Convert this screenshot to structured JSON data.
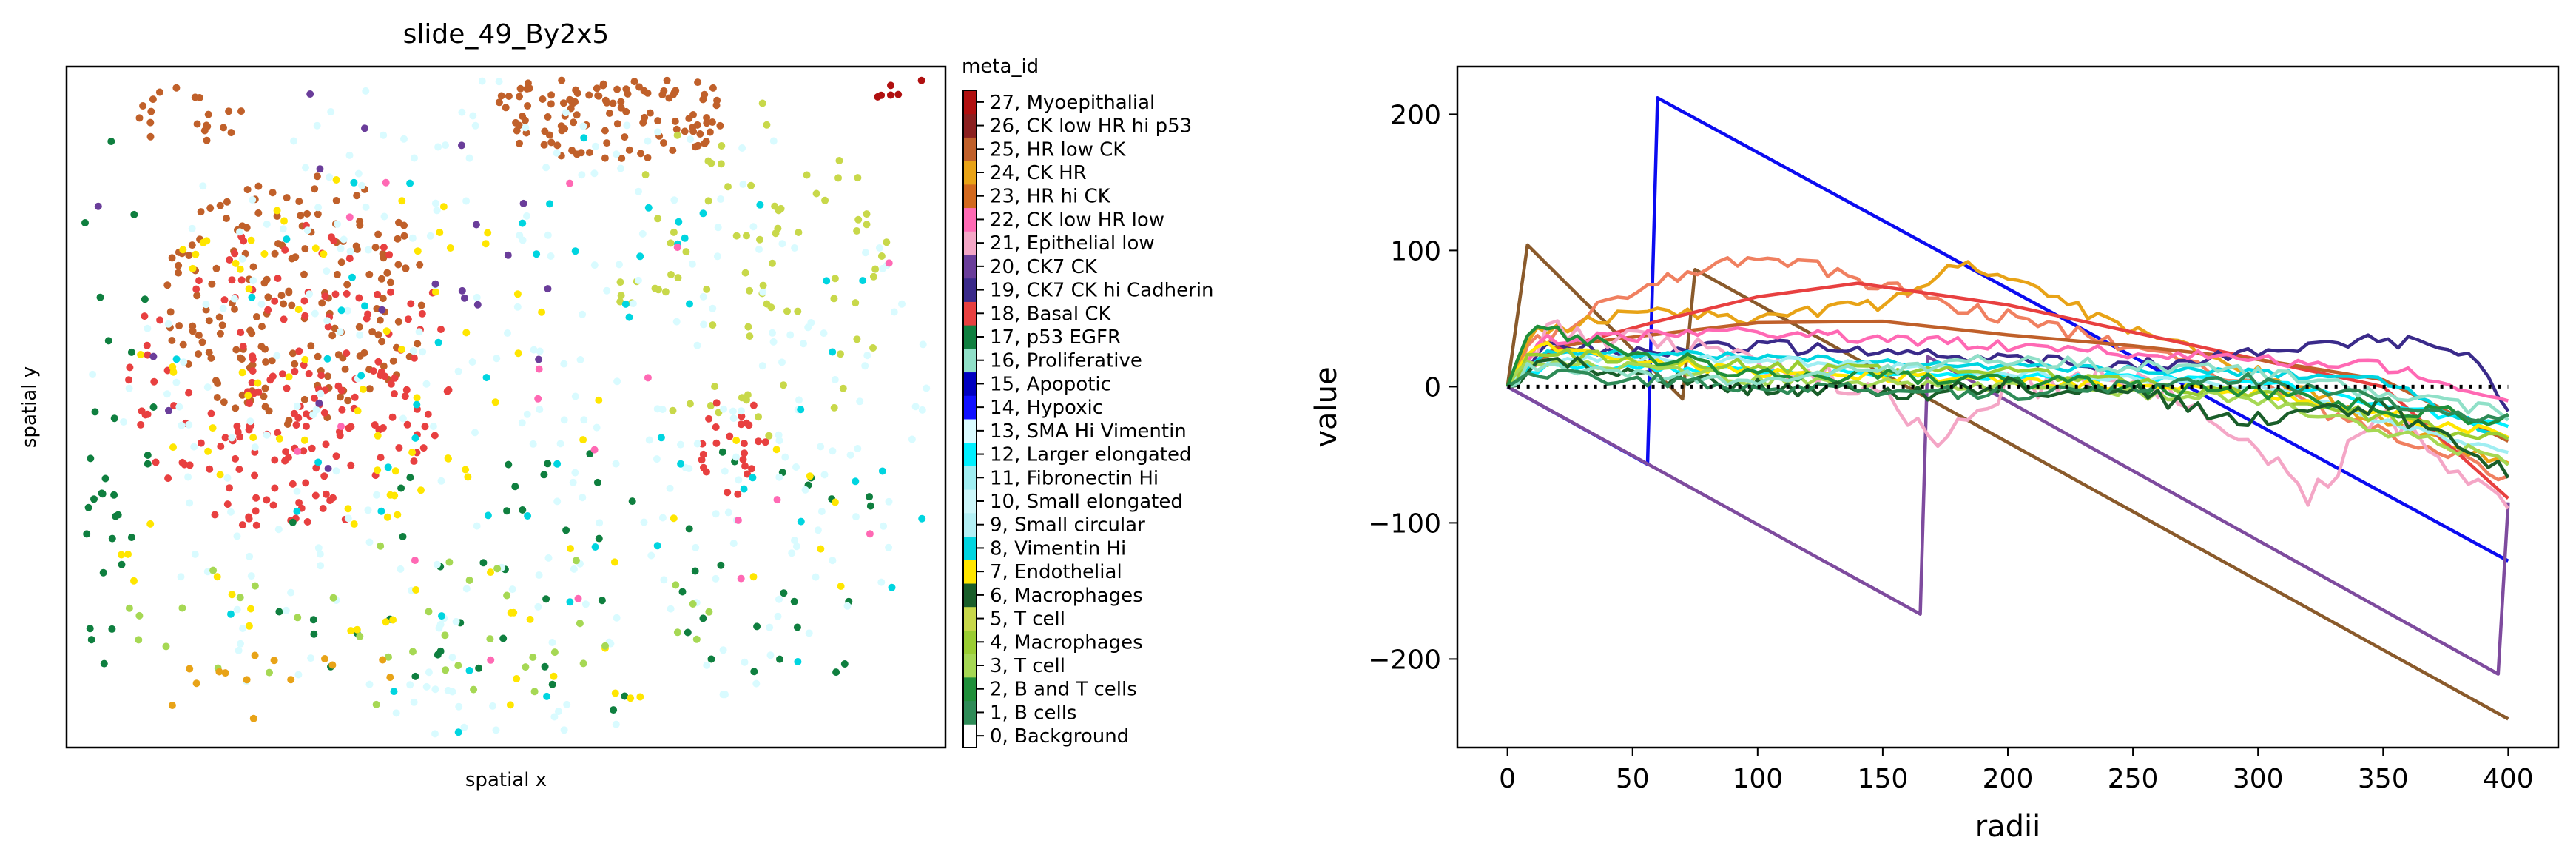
{
  "chart_data": [
    {
      "type": "scatter",
      "title": "slide_49_By2x5",
      "xlabel": "spatial x",
      "ylabel": "spatial y",
      "axis_ticks_visible": false,
      "grid": false,
      "legend_position": "right (colorbar)",
      "colorbar_title": "meta_id",
      "categories": [
        {
          "id": 0,
          "label": "0, Background",
          "color": "#ffffff"
        },
        {
          "id": 1,
          "label": "1, B cells",
          "color": "#2e8b57"
        },
        {
          "id": 2,
          "label": "2, B and T cells",
          "color": "#1f8f3a"
        },
        {
          "id": 3,
          "label": "3, T cell",
          "color": "#a6d854"
        },
        {
          "id": 4,
          "label": "4, Macrophages",
          "color": "#9acd32"
        },
        {
          "id": 5,
          "label": "5, T cell",
          "color": "#c8d84a"
        },
        {
          "id": 6,
          "label": "6, Macrophages",
          "color": "#1a5e2a"
        },
        {
          "id": 7,
          "label": "7, Endothelial",
          "color": "#ffe600"
        },
        {
          "id": 8,
          "label": "8, Vimentin Hi",
          "color": "#00d5e0"
        },
        {
          "id": 9,
          "label": "9, Small circular",
          "color": "#b3f0f5"
        },
        {
          "id": 10,
          "label": "10, Small elongated",
          "color": "#ccf7fa"
        },
        {
          "id": 11,
          "label": "11, Fibronectin Hi",
          "color": "#a0eef2"
        },
        {
          "id": 12,
          "label": "12, Larger elongated",
          "color": "#00f0ff"
        },
        {
          "id": 13,
          "label": "13, SMA Hi Vimentin",
          "color": "#d9fbff"
        },
        {
          "id": 14,
          "label": "14, Hypoxic",
          "color": "#1010ff"
        },
        {
          "id": 15,
          "label": "15, Apopotic",
          "color": "#0000c0"
        },
        {
          "id": 16,
          "label": "16, Proliferative",
          "color": "#90e0c8"
        },
        {
          "id": 17,
          "label": "17, p53 EGFR",
          "color": "#0f7f3f"
        },
        {
          "id": 18,
          "label": "18, Basal CK",
          "color": "#e84040"
        },
        {
          "id": 19,
          "label": "19, CK7 CK hi Cadherin",
          "color": "#3a2a8a"
        },
        {
          "id": 20,
          "label": "20, CK7 CK",
          "color": "#6a3d9a"
        },
        {
          "id": 21,
          "label": "21, Epithelial low",
          "color": "#f4a6c6"
        },
        {
          "id": 22,
          "label": "22, CK low HR low",
          "color": "#ff69b4"
        },
        {
          "id": 23,
          "label": "23, HR hi CK",
          "color": "#d2691e"
        },
        {
          "id": 24,
          "label": "24, CK HR",
          "color": "#e8a317"
        },
        {
          "id": 25,
          "label": "25, HR low CK",
          "color": "#c0602a"
        },
        {
          "id": 26,
          "label": "26, CK low HR hi p53",
          "color": "#8b2020"
        },
        {
          "id": 27,
          "label": "27, Myoepithalial",
          "color": "#b01010"
        }
      ],
      "clusters": [
        {
          "category": 25,
          "center": [
            0.26,
            0.34
          ],
          "radius": [
            0.15,
            0.19
          ],
          "n": 180
        },
        {
          "category": 18,
          "center": [
            0.26,
            0.46
          ],
          "radius": [
            0.19,
            0.23
          ],
          "n": 150
        },
        {
          "category": 18,
          "center": [
            0.26,
            0.55
          ],
          "radius": [
            0.07,
            0.12
          ],
          "n": 40
        },
        {
          "category": 25,
          "center": [
            0.62,
            0.07
          ],
          "radius": [
            0.14,
            0.07
          ],
          "n": 120
        },
        {
          "category": 25,
          "center": [
            0.14,
            0.07
          ],
          "radius": [
            0.06,
            0.05
          ],
          "n": 20
        },
        {
          "category": 7,
          "center": [
            0.32,
            0.42
          ],
          "radius": [
            0.24,
            0.26
          ],
          "n": 60
        },
        {
          "category": 5,
          "center": [
            0.78,
            0.3
          ],
          "radius": [
            0.16,
            0.25
          ],
          "n": 80
        },
        {
          "category": 17,
          "center": [
            0.05,
            0.5
          ],
          "radius": [
            0.05,
            0.4
          ],
          "n": 40
        },
        {
          "category": 17,
          "center": [
            0.6,
            0.75
          ],
          "radius": [
            0.4,
            0.2
          ],
          "n": 60
        },
        {
          "category": 18,
          "center": [
            0.76,
            0.56
          ],
          "radius": [
            0.04,
            0.08
          ],
          "n": 25
        },
        {
          "category": 13,
          "center": [
            0.5,
            0.5
          ],
          "radius": [
            0.5,
            0.5
          ],
          "n": 320
        },
        {
          "category": 8,
          "center": [
            0.55,
            0.55
          ],
          "radius": [
            0.45,
            0.45
          ],
          "n": 60
        },
        {
          "category": 7,
          "center": [
            0.5,
            0.7
          ],
          "radius": [
            0.45,
            0.25
          ],
          "n": 40
        },
        {
          "category": 20,
          "center": [
            0.3,
            0.3
          ],
          "radius": [
            0.28,
            0.3
          ],
          "n": 20
        },
        {
          "category": 22,
          "center": [
            0.6,
            0.45
          ],
          "radius": [
            0.38,
            0.45
          ],
          "n": 18
        },
        {
          "category": 27,
          "center": [
            0.95,
            0.03
          ],
          "radius": [
            0.04,
            0.02
          ],
          "n": 6
        },
        {
          "category": 3,
          "center": [
            0.4,
            0.82
          ],
          "radius": [
            0.35,
            0.12
          ],
          "n": 40
        },
        {
          "category": 24,
          "center": [
            0.25,
            0.9
          ],
          "radius": [
            0.18,
            0.06
          ],
          "n": 14
        }
      ]
    },
    {
      "type": "line",
      "title": "",
      "xlabel": "radii",
      "ylabel": "value",
      "xlim": [
        -20,
        420
      ],
      "ylim": [
        -265,
        235
      ],
      "xticks": [
        0,
        50,
        100,
        150,
        200,
        250,
        300,
        350,
        400
      ],
      "yticks": [
        -200,
        -100,
        0,
        100,
        200
      ],
      "grid": false,
      "legend": "none",
      "reference_line": {
        "y": 0,
        "style": "dotted",
        "color": "#000000"
      },
      "series": [
        {
          "color": "#0b0bf0",
          "style": "line",
          "points": [
            [
              0,
              0
            ],
            [
              56,
              -57
            ],
            [
              60,
              212
            ],
            [
              400,
              -128
            ]
          ]
        },
        {
          "color": "#8a5a2b",
          "style": "line",
          "points": [
            [
              0,
              0
            ],
            [
              8,
              104
            ],
            [
              70,
              -9
            ],
            [
              75,
              86
            ],
            [
              400,
              -244
            ]
          ]
        },
        {
          "color": "#7e4b9e",
          "style": "line",
          "points": [
            [
              0,
              0
            ],
            [
              165,
              -167
            ],
            [
              168,
              22
            ],
            [
              396,
              -211
            ],
            [
              400,
              -85
            ]
          ]
        },
        {
          "color": "#f08060",
          "style": "noisy",
          "amp": 6,
          "points": [
            [
              0,
              0
            ],
            [
              10,
              30
            ],
            [
              50,
              70
            ],
            [
              100,
              95
            ],
            [
              130,
              85
            ],
            [
              180,
              60
            ],
            [
              250,
              30
            ],
            [
              300,
              0
            ],
            [
              400,
              -65
            ]
          ]
        },
        {
          "color": "#e8a317",
          "style": "noisy",
          "amp": 5,
          "points": [
            [
              0,
              0
            ],
            [
              10,
              40
            ],
            [
              50,
              55
            ],
            [
              100,
              50
            ],
            [
              150,
              60
            ],
            [
              180,
              90
            ],
            [
              200,
              80
            ],
            [
              250,
              40
            ],
            [
              300,
              10
            ],
            [
              400,
              -60
            ]
          ]
        },
        {
          "color": "#e84040",
          "style": "line",
          "points": [
            [
              0,
              0
            ],
            [
              20,
              28
            ],
            [
              60,
              48
            ],
            [
              100,
              66
            ],
            [
              140,
              76
            ],
            [
              200,
              60
            ],
            [
              250,
              40
            ],
            [
              300,
              20
            ],
            [
              350,
              0
            ],
            [
              400,
              -82
            ]
          ]
        },
        {
          "color": "#c0602a",
          "style": "line",
          "points": [
            [
              0,
              0
            ],
            [
              20,
              30
            ],
            [
              100,
              47
            ],
            [
              150,
              48
            ],
            [
              200,
              38
            ],
            [
              250,
              30
            ],
            [
              300,
              20
            ],
            [
              350,
              5
            ],
            [
              400,
              -40
            ]
          ]
        },
        {
          "color": "#3a2a8a",
          "style": "noisy",
          "amp": 5,
          "points": [
            [
              0,
              0
            ],
            [
              15,
              30
            ],
            [
              50,
              25
            ],
            [
              100,
              30
            ],
            [
              150,
              25
            ],
            [
              200,
              20
            ],
            [
              250,
              15
            ],
            [
              300,
              25
            ],
            [
              350,
              35
            ],
            [
              385,
              25
            ],
            [
              400,
              -15
            ]
          ]
        },
        {
          "color": "#f4a6c6",
          "style": "noisy",
          "amp": 10,
          "points": [
            [
              0,
              0
            ],
            [
              15,
              40
            ],
            [
              50,
              35
            ],
            [
              100,
              20
            ],
            [
              150,
              -5
            ],
            [
              170,
              -40
            ],
            [
              200,
              0
            ],
            [
              250,
              5
            ],
            [
              300,
              -40
            ],
            [
              320,
              -88
            ],
            [
              330,
              -60
            ],
            [
              350,
              -20
            ],
            [
              400,
              -85
            ]
          ]
        },
        {
          "color": "#ff69b4",
          "style": "noisy",
          "amp": 4,
          "points": [
            [
              0,
              0
            ],
            [
              15,
              35
            ],
            [
              100,
              40
            ],
            [
              200,
              30
            ],
            [
              300,
              20
            ],
            [
              350,
              15
            ],
            [
              400,
              -10
            ]
          ]
        },
        {
          "color": "#00d5e0",
          "style": "noisy",
          "amp": 3,
          "points": [
            [
              0,
              0
            ],
            [
              15,
              25
            ],
            [
              100,
              22
            ],
            [
              200,
              15
            ],
            [
              300,
              10
            ],
            [
              350,
              5
            ],
            [
              400,
              -40
            ]
          ]
        },
        {
          "color": "#00f0ff",
          "style": "noisy",
          "amp": 3,
          "points": [
            [
              0,
              0
            ],
            [
              15,
              15
            ],
            [
              100,
              12
            ],
            [
              200,
              8
            ],
            [
              300,
              5
            ],
            [
              400,
              -30
            ]
          ]
        },
        {
          "color": "#a0eef2",
          "style": "noisy",
          "amp": 3,
          "points": [
            [
              0,
              0
            ],
            [
              15,
              20
            ],
            [
              100,
              20
            ],
            [
              200,
              10
            ],
            [
              300,
              0
            ],
            [
              400,
              -50
            ]
          ]
        },
        {
          "color": "#ffe600",
          "style": "noisy",
          "amp": 4,
          "points": [
            [
              0,
              0
            ],
            [
              10,
              30
            ],
            [
              100,
              10
            ],
            [
              200,
              5
            ],
            [
              300,
              -5
            ],
            [
              400,
              -35
            ]
          ]
        },
        {
          "color": "#9acd32",
          "style": "noisy",
          "amp": 5,
          "points": [
            [
              0,
              0
            ],
            [
              10,
              25
            ],
            [
              100,
              15
            ],
            [
              200,
              10
            ],
            [
              300,
              -5
            ],
            [
              400,
              -40
            ]
          ]
        },
        {
          "color": "#a6d854",
          "style": "noisy",
          "amp": 5,
          "points": [
            [
              0,
              0
            ],
            [
              10,
              20
            ],
            [
              100,
              5
            ],
            [
              200,
              0
            ],
            [
              300,
              -10
            ],
            [
              400,
              -55
            ]
          ]
        },
        {
          "color": "#1f8f3a",
          "style": "noisy",
          "amp": 6,
          "points": [
            [
              0,
              0
            ],
            [
              10,
              45
            ],
            [
              50,
              25
            ],
            [
              100,
              10
            ],
            [
              200,
              5
            ],
            [
              300,
              -5
            ],
            [
              400,
              -25
            ]
          ]
        },
        {
          "color": "#1a5e2a",
          "style": "noisy",
          "amp": 7,
          "points": [
            [
              0,
              0
            ],
            [
              10,
              20
            ],
            [
              100,
              0
            ],
            [
              150,
              -5
            ],
            [
              200,
              0
            ],
            [
              250,
              -5
            ],
            [
              300,
              -25
            ],
            [
              350,
              -15
            ],
            [
              400,
              -60
            ]
          ]
        },
        {
          "color": "#90e0c8",
          "style": "noisy",
          "amp": 5,
          "points": [
            [
              0,
              0
            ],
            [
              10,
              15
            ],
            [
              100,
              5
            ],
            [
              200,
              20
            ],
            [
              300,
              10
            ],
            [
              400,
              -20
            ]
          ]
        },
        {
          "color": "#2e8b57",
          "style": "noisy",
          "amp": 5,
          "points": [
            [
              0,
              0
            ],
            [
              12,
              10
            ],
            [
              100,
              0
            ],
            [
              200,
              -5
            ],
            [
              300,
              5
            ],
            [
              400,
              -25
            ]
          ]
        }
      ]
    }
  ]
}
